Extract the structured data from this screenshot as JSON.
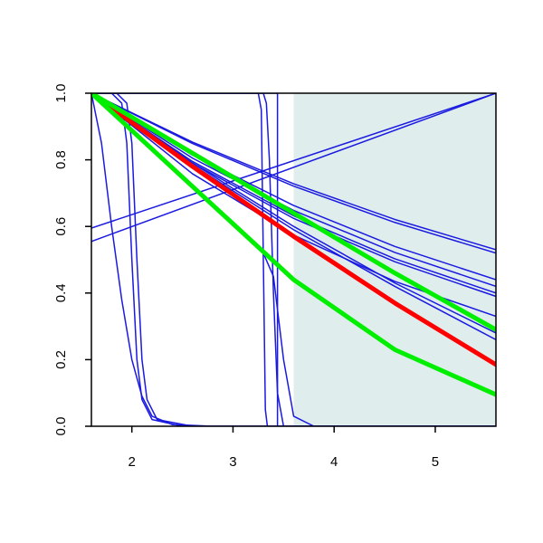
{
  "chart_data": {
    "type": "line",
    "xlim": [
      1.6,
      5.6
    ],
    "ylim": [
      0,
      1
    ],
    "xticks": [
      2,
      3,
      4,
      5
    ],
    "yticks": [
      {
        "value": 0,
        "label": "0.0"
      },
      0.2,
      0.4,
      0.6,
      0.8,
      {
        "value": 1,
        "label": "1.0"
      }
    ],
    "shaded_region": {
      "xlim": [
        3.6,
        5.6
      ],
      "color": "#e0eded"
    },
    "series": [
      {
        "color": "#1a1ae0",
        "linewidth": 1.5,
        "x": [
          1.6,
          5.6
        ],
        "values": [
          0.595,
          1.0
        ]
      },
      {
        "color": "#1a1ae0",
        "linewidth": 1.5,
        "x": [
          1.6,
          5.6
        ],
        "values": [
          0.555,
          1.0
        ]
      },
      {
        "color": "#1a1ae0",
        "linewidth": 1.5,
        "x": [
          1.6,
          2.6,
          3.6,
          4.6,
          5.6
        ],
        "values": [
          1.0,
          0.853,
          0.728,
          0.621,
          0.53
        ]
      },
      {
        "color": "#1a1ae0",
        "linewidth": 1.5,
        "x": [
          1.6,
          2.6,
          3.6,
          4.6,
          5.6
        ],
        "values": [
          1.0,
          0.849,
          0.721,
          0.612,
          0.52
        ]
      },
      {
        "color": "#1a1ae0",
        "linewidth": 1.5,
        "x": [
          1.6,
          2.6,
          3.6,
          4.6,
          5.6
        ],
        "values": [
          1.0,
          0.814,
          0.663,
          0.54,
          0.44
        ]
      },
      {
        "color": "#1a1ae0",
        "linewidth": 1.5,
        "x": [
          1.6,
          2.6,
          3.6,
          4.6,
          5.6
        ],
        "values": [
          1.0,
          0.805,
          0.648,
          0.522,
          0.42
        ]
      },
      {
        "color": "#1a1ae0",
        "linewidth": 1.5,
        "x": [
          1.6,
          2.6,
          3.6,
          4.6,
          5.6
        ],
        "values": [
          1.0,
          0.795,
          0.632,
          0.503,
          0.4
        ]
      },
      {
        "color": "#1a1ae0",
        "linewidth": 1.5,
        "x": [
          1.6,
          2.6,
          3.6,
          4.6,
          5.6
        ],
        "values": [
          1.0,
          0.79,
          0.624,
          0.494,
          0.39
        ]
      },
      {
        "color": "#1a1ae0",
        "linewidth": 1.5,
        "x": [
          1.6,
          2.6,
          3.6,
          4.6,
          5.6
        ],
        "values": [
          1.0,
          0.758,
          0.574,
          0.435,
          0.33
        ]
      },
      {
        "color": "#1a1ae0",
        "linewidth": 1.5,
        "x": [
          1.6,
          2.6,
          3.6,
          4.6,
          5.6
        ],
        "values": [
          1.0,
          0.79,
          0.6,
          0.43,
          0.28
        ]
      },
      {
        "color": "#1a1ae0",
        "linewidth": 1.5,
        "x": [
          1.6,
          2.6,
          3.6,
          4.6,
          5.6
        ],
        "values": [
          1.0,
          0.785,
          0.59,
          0.42,
          0.26
        ]
      },
      {
        "color": "#1a1ae0",
        "linewidth": 1.5,
        "x": [
          1.6,
          1.7,
          1.8,
          1.9,
          2.0,
          2.1,
          2.2,
          2.4,
          2.8,
          5.6
        ],
        "values": [
          1.0,
          0.85,
          0.6,
          0.38,
          0.2,
          0.09,
          0.03,
          0.005,
          0,
          0
        ]
      },
      {
        "color": "#1a1ae0",
        "linewidth": 1.5,
        "x": [
          1.6,
          1.8,
          1.9,
          1.95,
          2.0,
          2.05,
          2.1,
          2.2,
          2.5,
          5.6
        ],
        "values": [
          1.0,
          1.0,
          0.97,
          0.85,
          0.5,
          0.2,
          0.08,
          0.02,
          0,
          0
        ]
      },
      {
        "color": "#1a1ae0",
        "linewidth": 1.5,
        "x": [
          1.6,
          1.85,
          1.95,
          2.0,
          2.05,
          2.1,
          2.15,
          2.25,
          2.6,
          5.6
        ],
        "values": [
          1.0,
          1.0,
          0.97,
          0.85,
          0.5,
          0.2,
          0.08,
          0.02,
          0,
          0
        ]
      },
      {
        "color": "#1a1ae0",
        "linewidth": 1.5,
        "x": [
          1.6,
          3.25,
          3.28,
          3.3,
          3.32,
          3.34,
          5.6
        ],
        "values": [
          1.0,
          1.0,
          0.95,
          0.5,
          0.05,
          0,
          0
        ]
      },
      {
        "color": "#1a1ae0",
        "linewidth": 1.5,
        "x": [
          1.6,
          3.3,
          3.33,
          3.36,
          3.4,
          3.44,
          3.5,
          5.6
        ],
        "values": [
          1.0,
          1.0,
          0.97,
          0.8,
          0.4,
          0.1,
          0,
          0
        ]
      },
      {
        "color": "#1a1ae0",
        "linewidth": 1.5,
        "x": [
          1.6,
          3.44,
          3.44,
          5.6
        ],
        "values": [
          1.0,
          1.0,
          0,
          0
        ]
      },
      {
        "color": "#1a1ae0",
        "linewidth": 1.5,
        "x": [
          1.6,
          2.6,
          3.3,
          3.4,
          3.5,
          3.6,
          3.8,
          5.6
        ],
        "values": [
          1.0,
          0.72,
          0.52,
          0.45,
          0.2,
          0.03,
          0,
          0
        ]
      },
      {
        "color": "#ff0000",
        "linewidth": 5,
        "x": [
          1.6,
          2.6,
          3.6,
          4.6,
          5.6
        ],
        "values": [
          1.0,
          0.78,
          0.57,
          0.37,
          0.185
        ]
      },
      {
        "color": "#00ee00",
        "linewidth": 5,
        "x": [
          1.6,
          2.6,
          3.6,
          4.6,
          5.6
        ],
        "values": [
          1.0,
          0.82,
          0.64,
          0.46,
          0.29
        ]
      },
      {
        "color": "#00ee00",
        "linewidth": 5,
        "x": [
          1.6,
          2.6,
          3.6,
          4.6,
          5.6
        ],
        "values": [
          1.0,
          0.72,
          0.44,
          0.23,
          0.095
        ]
      }
    ]
  }
}
